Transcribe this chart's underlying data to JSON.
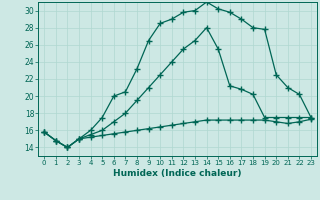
{
  "xlabel": "Humidex (Indice chaleur)",
  "bg_color": "#cde8e4",
  "line_color": "#006655",
  "grid_color": "#b0d8d0",
  "xlim": [
    -0.5,
    23.5
  ],
  "ylim": [
    13,
    31
  ],
  "xticks": [
    0,
    1,
    2,
    3,
    4,
    5,
    6,
    7,
    8,
    9,
    10,
    11,
    12,
    13,
    14,
    15,
    16,
    17,
    18,
    19,
    20,
    21,
    22,
    23
  ],
  "yticks": [
    14,
    16,
    18,
    20,
    22,
    24,
    26,
    28,
    30
  ],
  "line1_x": [
    0,
    1,
    2,
    3,
    4,
    5,
    6,
    7,
    8,
    9,
    10,
    11,
    12,
    13,
    14,
    15,
    16,
    17,
    18,
    19,
    20,
    21,
    22,
    23
  ],
  "line1_y": [
    15.8,
    14.8,
    14.0,
    15.0,
    16.0,
    17.5,
    20.0,
    20.5,
    23.2,
    26.5,
    28.5,
    29.0,
    29.8,
    30.0,
    31.0,
    30.2,
    29.8,
    29.0,
    28.0,
    27.8,
    22.5,
    21.0,
    20.2,
    17.5
  ],
  "line2_x": [
    0,
    1,
    2,
    3,
    4,
    5,
    6,
    7,
    8,
    9,
    10,
    11,
    12,
    13,
    14,
    15,
    16,
    17,
    18,
    19,
    20,
    21,
    22,
    23
  ],
  "line2_y": [
    15.8,
    14.8,
    14.0,
    15.0,
    15.5,
    16.0,
    17.0,
    18.0,
    19.5,
    21.0,
    22.5,
    24.0,
    25.5,
    26.5,
    28.0,
    25.5,
    21.2,
    20.8,
    20.2,
    17.5,
    17.5,
    17.5,
    17.5,
    17.5
  ],
  "line3_x": [
    0,
    1,
    2,
    3,
    4,
    5,
    6,
    7,
    8,
    9,
    10,
    11,
    12,
    13,
    14,
    15,
    16,
    17,
    18,
    19,
    20,
    21,
    22,
    23
  ],
  "line3_y": [
    15.8,
    14.8,
    14.0,
    15.0,
    15.2,
    15.4,
    15.6,
    15.8,
    16.0,
    16.2,
    16.4,
    16.6,
    16.8,
    17.0,
    17.2,
    17.2,
    17.2,
    17.2,
    17.2,
    17.2,
    17.0,
    16.8,
    17.0,
    17.3
  ]
}
